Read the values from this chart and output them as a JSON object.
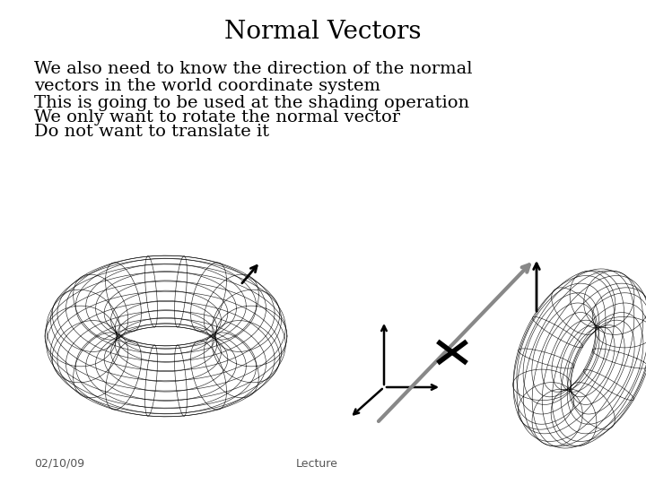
{
  "title": "Normal Vectors",
  "title_fontsize": 20,
  "background_color": "#ffffff",
  "text_color": "#000000",
  "bullet_lines": [
    "We also need to know the direction of the normal",
    "vectors in the world coordinate system",
    "This is going to be used at the shading operation",
    "We only want to rotate the normal vector",
    "Do not want to translate it"
  ],
  "bullet_fontsize": 14,
  "footer_left": "02/10/09",
  "footer_center": "Lecture",
  "footer_fontsize": 9
}
